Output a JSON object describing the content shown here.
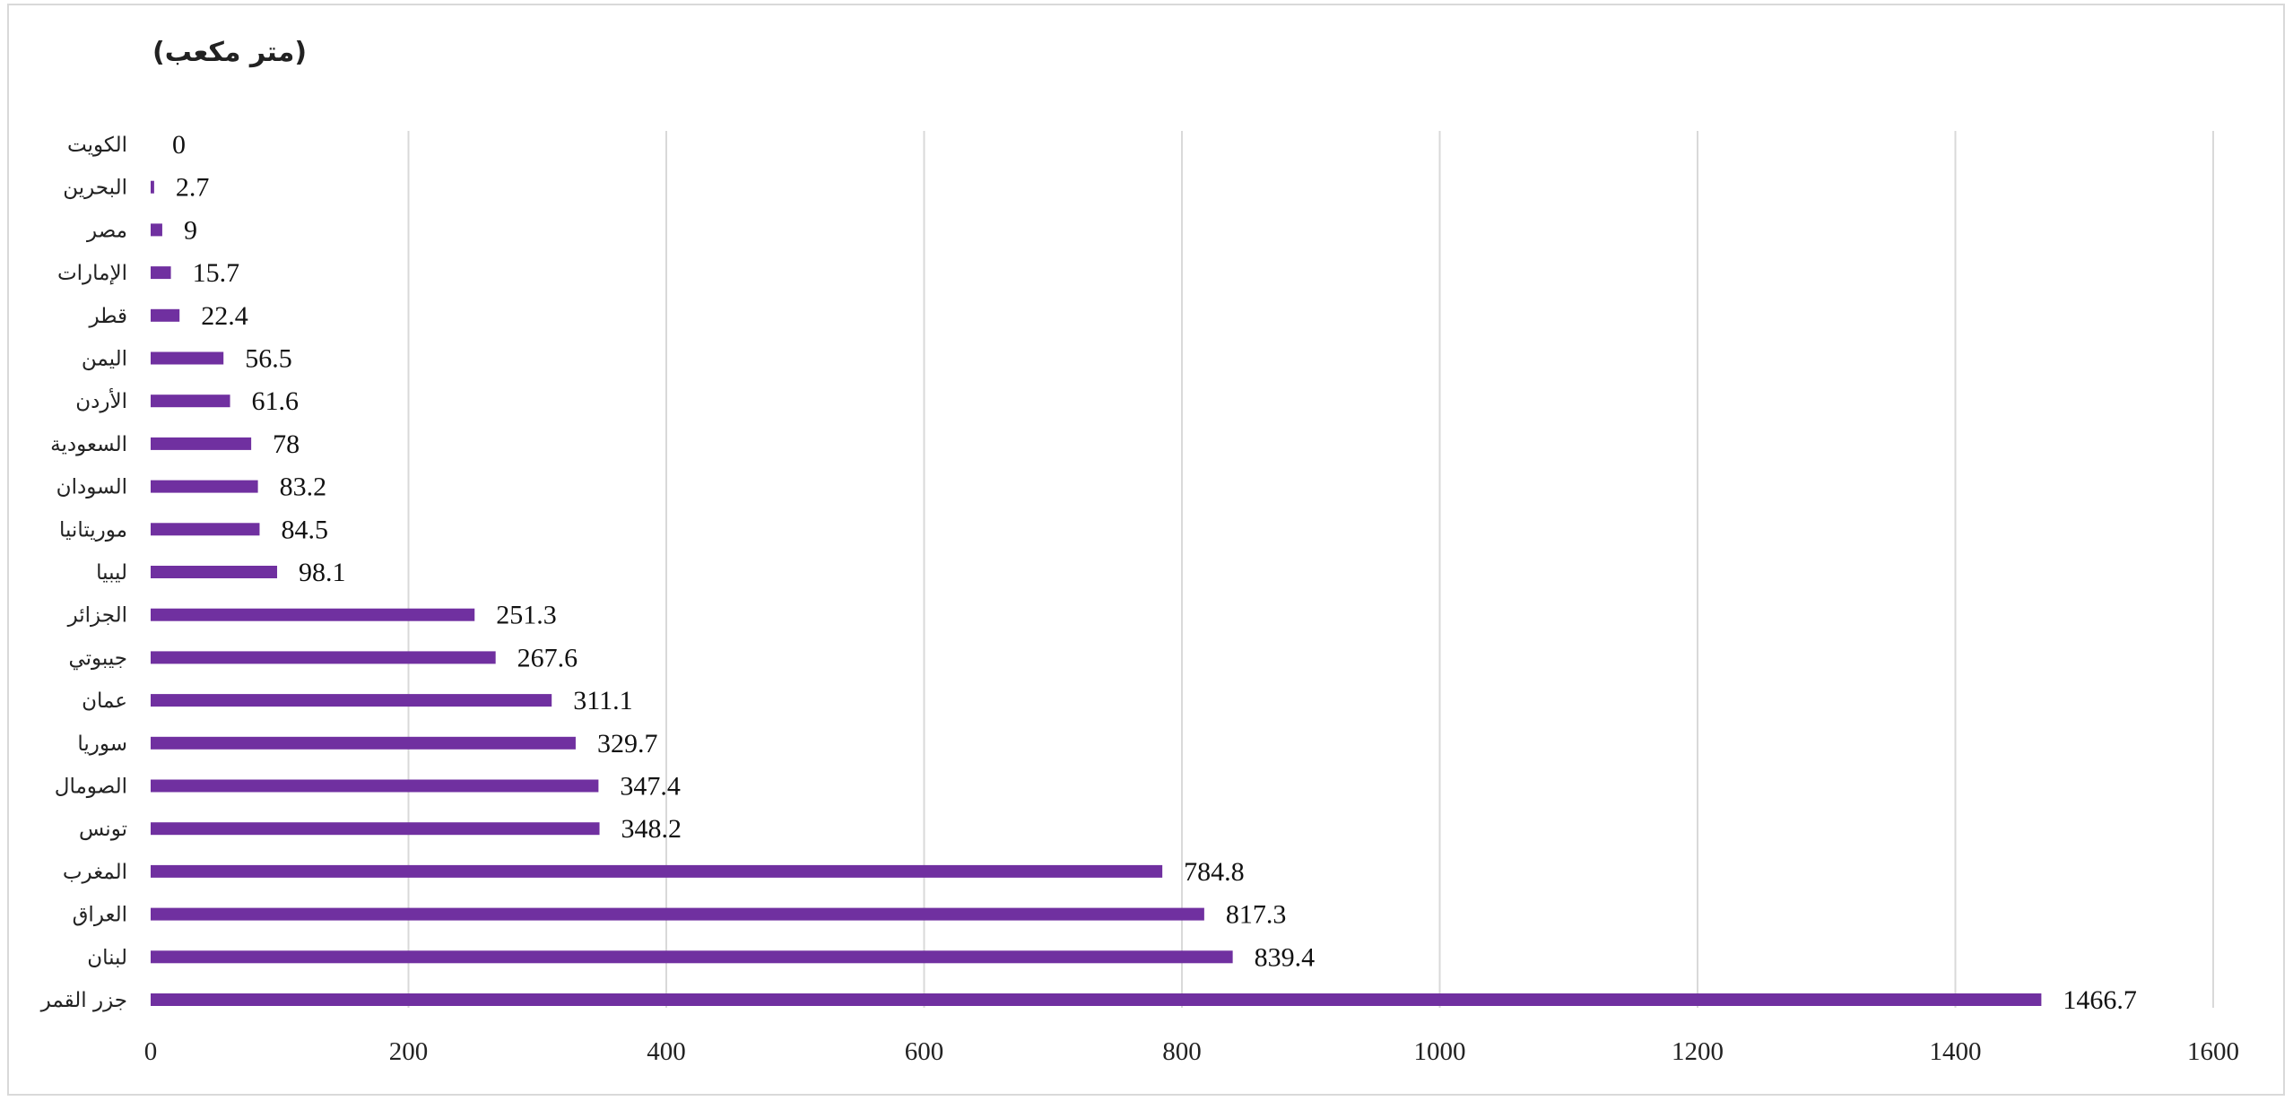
{
  "chart_data": {
    "type": "bar",
    "orientation": "horizontal",
    "unit_label": "(متر مكعب)",
    "title": "",
    "xlabel": "",
    "ylabel": "",
    "xlim": [
      0,
      1600
    ],
    "x_ticks": [
      0,
      200,
      400,
      600,
      800,
      1000,
      1200,
      1400,
      1600
    ],
    "grid": true,
    "bar_color": "#7030a0",
    "categories": [
      "الكويت",
      "البحرين",
      "مصر",
      "الإمارات",
      "قطر",
      "اليمن",
      "الأردن",
      "السعودية",
      "السودان",
      "موريتانيا",
      "ليبيا",
      "الجزائر",
      "جيبوتي",
      "عمان",
      "سوريا",
      "الصومال",
      "تونس",
      "المغرب",
      "العراق",
      "لبنان",
      "جزر القمر"
    ],
    "values": [
      0,
      2.7,
      9,
      15.7,
      22.4,
      56.5,
      61.6,
      78,
      83.2,
      84.5,
      98.1,
      251.3,
      267.6,
      311.1,
      329.7,
      347.4,
      348.2,
      784.8,
      817.3,
      839.4,
      1466.7
    ],
    "value_labels": [
      "0",
      "2.7",
      "9",
      "15.7",
      "22.4",
      "56.5",
      "61.6",
      "78",
      "83.2",
      "84.5",
      "98.1",
      "251.3",
      "267.6",
      "311.1",
      "329.7",
      "347.4",
      "348.2",
      "784.8",
      "817.3",
      "839.4",
      "1466.7"
    ]
  }
}
